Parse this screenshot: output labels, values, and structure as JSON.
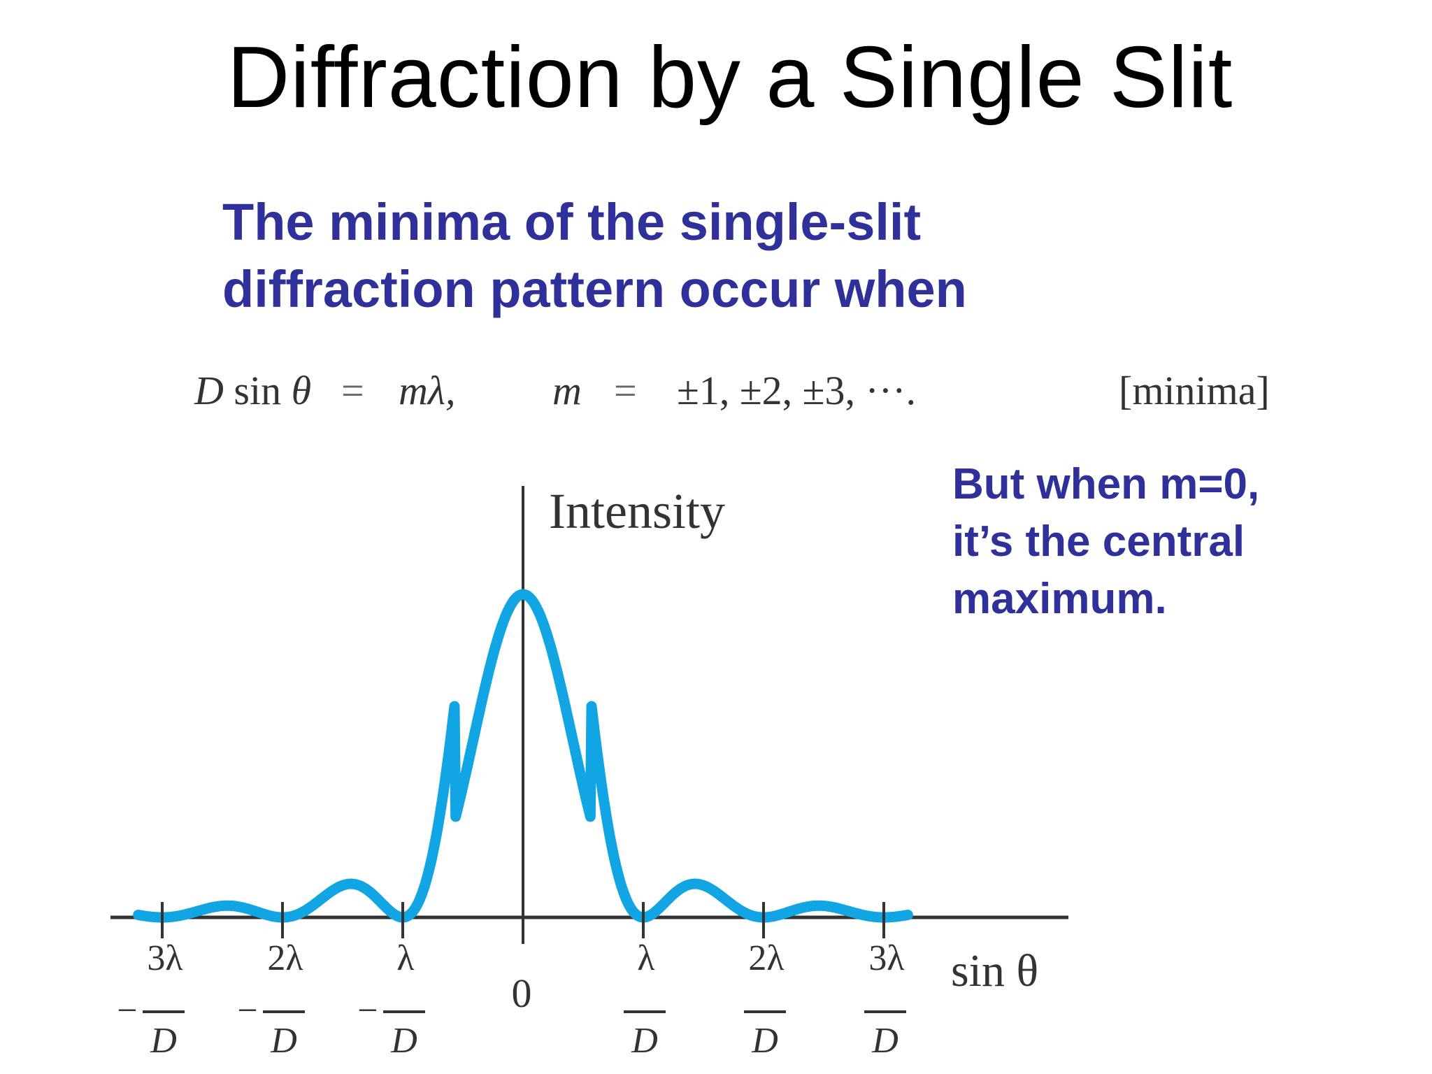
{
  "slide": {
    "title": "Diffraction by a Single Slit",
    "lead_lines": [
      "The minima of the single-slit",
      "diffraction pattern occur when"
    ],
    "equation": {
      "lhs_var": "D",
      "lhs_fn": "sin",
      "lhs_arg": "θ",
      "eq_sign": "=",
      "rhs": "mλ,",
      "m_label": "m",
      "m_values": "±1, ±2, ±3, ···.",
      "tag": "[minima]"
    },
    "note_lines": [
      "But when m=0,",
      "it’s the central",
      "maximum."
    ],
    "colors": {
      "title": "#000000",
      "accent_text": "#30309a",
      "curve": "#12a5e3",
      "axis": "#333333"
    }
  },
  "chart_data": {
    "type": "line",
    "y_axis_label": "Intensity",
    "x_axis_label": "sin θ",
    "x_unit_note": "x in units of λ/D",
    "xlim": [
      -3.2,
      3.2
    ],
    "ylim": [
      0,
      1
    ],
    "curve": "single-slit intensity I = (sin(πx)/(πx))²",
    "ticks": [
      {
        "value": -3,
        "sign": "−",
        "num": "3λ",
        "den": "D"
      },
      {
        "value": -2,
        "sign": "−",
        "num": "2λ",
        "den": "D"
      },
      {
        "value": -1,
        "sign": "−",
        "num": "λ",
        "den": "D"
      },
      {
        "value": 0,
        "label": "0"
      },
      {
        "value": 1,
        "sign": "",
        "num": "λ",
        "den": "D"
      },
      {
        "value": 2,
        "sign": "",
        "num": "2λ",
        "den": "D"
      },
      {
        "value": 3,
        "sign": "",
        "num": "3λ",
        "den": "D"
      }
    ],
    "series": [
      {
        "x": [
          -3.2,
          -3.0,
          -2.5,
          -2.0,
          -1.5,
          -1.0,
          -0.5,
          0,
          0.5,
          1.0,
          1.5,
          2.0,
          2.5,
          3.0,
          3.2
        ],
        "values": [
          0.004,
          0,
          0.016,
          0,
          0.045,
          0,
          0.405,
          1.0,
          0.405,
          0,
          0.045,
          0,
          0.016,
          0,
          0.004
        ]
      }
    ],
    "grid": false,
    "legend": "none"
  }
}
